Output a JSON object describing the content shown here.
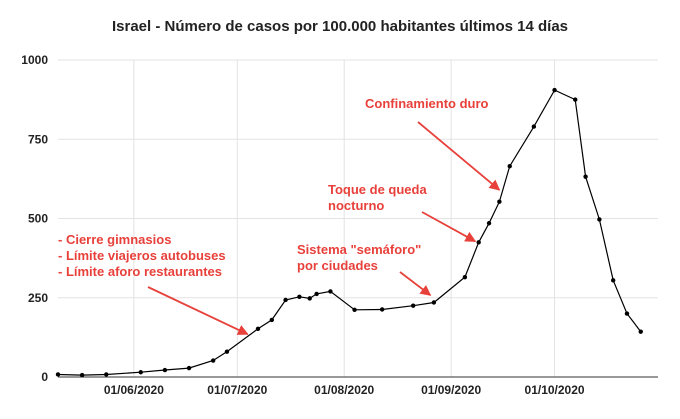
{
  "chart_data": {
    "type": "line",
    "title": "Israel - Número de casos por 100.000 habitantes últimos 14 días",
    "xlabel": "",
    "ylabel": "",
    "x_range": [
      "2020-05-10",
      "2020-10-31"
    ],
    "ylim": [
      0,
      1000
    ],
    "yticks": [
      {
        "value": 0,
        "label": "0"
      },
      {
        "value": 250,
        "label": "250"
      },
      {
        "value": 500,
        "label": "500"
      },
      {
        "value": 750,
        "label": "750"
      },
      {
        "value": 1000,
        "label": "1000"
      }
    ],
    "xticks": [
      {
        "date": "2020-06-01",
        "label": "01/06/2020"
      },
      {
        "date": "2020-07-01",
        "label": "01/07/2020"
      },
      {
        "date": "2020-08-01",
        "label": "01/08/2020"
      },
      {
        "date": "2020-09-01",
        "label": "01/09/2020"
      },
      {
        "date": "2020-10-01",
        "label": "01/10/2020"
      }
    ],
    "grid": "vertical",
    "series": [
      {
        "color": "#000000",
        "points": [
          {
            "x": "2020-05-10",
            "y": 8
          },
          {
            "x": "2020-05-17",
            "y": 6
          },
          {
            "x": "2020-05-24",
            "y": 8
          },
          {
            "x": "2020-06-03",
            "y": 15
          },
          {
            "x": "2020-06-10",
            "y": 22
          },
          {
            "x": "2020-06-17",
            "y": 28
          },
          {
            "x": "2020-06-24",
            "y": 52
          },
          {
            "x": "2020-06-28",
            "y": 80
          },
          {
            "x": "2020-07-07",
            "y": 152
          },
          {
            "x": "2020-07-11",
            "y": 180
          },
          {
            "x": "2020-07-15",
            "y": 243
          },
          {
            "x": "2020-07-19",
            "y": 253
          },
          {
            "x": "2020-07-22",
            "y": 248
          },
          {
            "x": "2020-07-24",
            "y": 262
          },
          {
            "x": "2020-07-28",
            "y": 270
          },
          {
            "x": "2020-08-04",
            "y": 212
          },
          {
            "x": "2020-08-12",
            "y": 213
          },
          {
            "x": "2020-08-21",
            "y": 225
          },
          {
            "x": "2020-08-27",
            "y": 235
          },
          {
            "x": "2020-09-05",
            "y": 315
          },
          {
            "x": "2020-09-09",
            "y": 425
          },
          {
            "x": "2020-09-12",
            "y": 485
          },
          {
            "x": "2020-09-15",
            "y": 553
          },
          {
            "x": "2020-09-18",
            "y": 665
          },
          {
            "x": "2020-09-25",
            "y": 790
          },
          {
            "x": "2020-10-01",
            "y": 905
          },
          {
            "x": "2020-10-07",
            "y": 875
          },
          {
            "x": "2020-10-10",
            "y": 632
          },
          {
            "x": "2020-10-14",
            "y": 497
          },
          {
            "x": "2020-10-18",
            "y": 305
          },
          {
            "x": "2020-10-22",
            "y": 200
          },
          {
            "x": "2020-10-26",
            "y": 143
          }
        ]
      }
    ],
    "annotations": [
      {
        "lines": [
          "Confinamiento duro"
        ],
        "color": "#e8403a",
        "arrow_to": {
          "x": "2020-09-15",
          "y": 590
        }
      },
      {
        "lines": [
          "Toque de queda",
          "nocturno"
        ],
        "color": "#e8403a",
        "arrow_to": {
          "x": "2020-09-08",
          "y": 428
        }
      },
      {
        "lines": [
          "Sistema \"semáforo\"",
          "por ciudades"
        ],
        "color": "#e8403a",
        "arrow_to": {
          "x": "2020-08-26",
          "y": 258
        }
      },
      {
        "lines": [
          "- Cierre gimnasios",
          "- Límite viajeros autobuses",
          "- Límite aforo restaurantes"
        ],
        "color": "#e8403a",
        "arrow_to": {
          "x": "2020-07-04",
          "y": 135
        }
      }
    ]
  }
}
